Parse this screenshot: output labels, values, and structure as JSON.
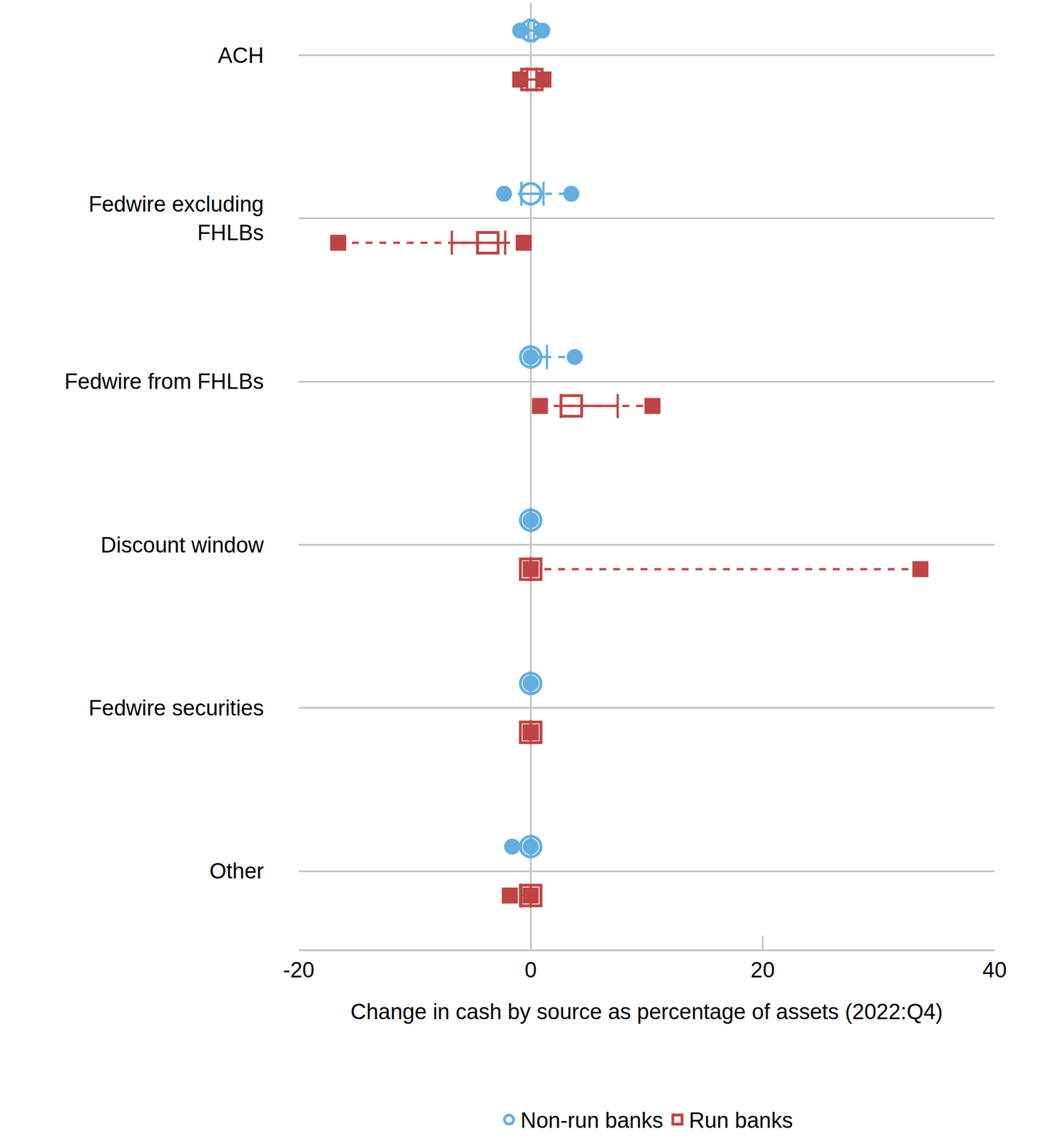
{
  "chart_data": {
    "type": "dot_whisker",
    "orientation": "horizontal",
    "x_label": "Change in cash by source as percentage of assets (2022:Q4)",
    "categories": [
      "ACH",
      "Fedwire excluding FHLBs",
      "Fedwire from FHLBs",
      "Discount window",
      "Fedwire securities",
      "Other"
    ],
    "xlim": [
      -20,
      40
    ],
    "xticks": [
      -20,
      0,
      20,
      40
    ],
    "grid": true,
    "legend": "bottom",
    "series": [
      {
        "name": "Non-run banks",
        "color": "#62aee0",
        "marker": "circle",
        "values": [
          0,
          0,
          0,
          0,
          0,
          0
        ],
        "iqr_low": [
          -0.2,
          -0.8,
          0,
          0,
          0,
          0
        ],
        "iqr_high": [
          0.3,
          1.1,
          1.4,
          0,
          0,
          0
        ],
        "range_low": [
          -0.9,
          -2.3,
          0,
          0,
          0,
          -1.6
        ],
        "range_high": [
          1.0,
          3.5,
          3.8,
          0,
          0,
          0
        ]
      },
      {
        "name": "Run banks",
        "color": "#c04444",
        "marker": "square",
        "values": [
          0.1,
          -3.7,
          3.5,
          0,
          0,
          0
        ],
        "iqr_low": [
          -0.3,
          -6.8,
          2.6,
          0,
          0,
          -0.8
        ],
        "iqr_high": [
          0.5,
          -2.2,
          7.5,
          0,
          0,
          0
        ],
        "range_low": [
          -0.9,
          -16.6,
          0.8,
          0,
          0,
          -1.8
        ],
        "range_high": [
          1.1,
          -0.6,
          10.5,
          33.6,
          0,
          0
        ]
      }
    ]
  }
}
